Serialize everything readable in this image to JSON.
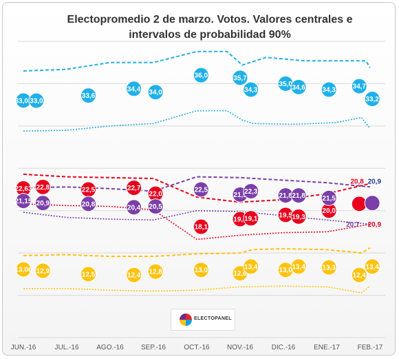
{
  "title": "Electopromedio 2 de marzo. Votos. Valores centrales e intervalos de probabilidad 90%",
  "logo_text": "ELECTOPANEL",
  "colors": {
    "pp": "#1fb0ea",
    "psoe": "#e8001c",
    "podemos": "#7a3fa8",
    "cs": "#ffc20e",
    "grid": "#d9d9d9"
  },
  "chart_data": {
    "type": "scatter",
    "ylim": [
      5,
      40
    ],
    "grid": true,
    "x_ticks": [
      "JUN.-16",
      "JUL.-16",
      "AGO.-16",
      "SEP.-16",
      "OCT.-16",
      "NOV.-16",
      "DIC.-16",
      "ENE.-17",
      "FEB.-17"
    ],
    "series": [
      {
        "key": "pp",
        "points": [
          {
            "x": 0,
            "y": 33.01,
            "label": "33,01"
          },
          {
            "x": 0.3,
            "y": 33.0,
            "label": "33,0"
          },
          {
            "x": 1.5,
            "y": 33.6,
            "label": "33,6"
          },
          {
            "x": 2.55,
            "y": 34.4,
            "label": "34,4"
          },
          {
            "x": 3.05,
            "y": 34.0,
            "label": "34,0"
          },
          {
            "x": 4.1,
            "y": 36.0,
            "label": "36,0"
          },
          {
            "x": 5.0,
            "y": 35.7,
            "label": "35,7"
          },
          {
            "x": 5.25,
            "y": 34.3,
            "label": "34,3"
          },
          {
            "x": 6.05,
            "y": 35.0,
            "label": "35,0"
          },
          {
            "x": 6.35,
            "y": 34.6,
            "label": "34,6"
          },
          {
            "x": 7.05,
            "y": 34.3,
            "label": "34,3"
          },
          {
            "x": 7.75,
            "y": 34.7,
            "label": "34,7"
          },
          {
            "x": 8.05,
            "y": 33.2,
            "label": "33,2"
          }
        ],
        "upper": [
          [
            0,
            36.5
          ],
          [
            1,
            36.7
          ],
          [
            2,
            37.5
          ],
          [
            3,
            37.5
          ],
          [
            4,
            38.8
          ],
          [
            4.7,
            38.8
          ],
          [
            5.05,
            37.2
          ],
          [
            5.6,
            38.1
          ],
          [
            6.5,
            37.7
          ],
          [
            7.5,
            37.7
          ],
          [
            7.9,
            37.7
          ],
          [
            8.0,
            36.9
          ]
        ],
        "lower": [
          [
            0,
            29.4
          ],
          [
            1,
            29.5
          ],
          [
            2,
            30.0
          ],
          [
            3,
            30.3
          ],
          [
            4,
            31.8
          ],
          [
            4.7,
            31.8
          ],
          [
            5.05,
            30.7
          ],
          [
            5.3,
            30.3
          ],
          [
            6.2,
            30.2
          ],
          [
            7.2,
            30.4
          ],
          [
            7.8,
            31.0
          ],
          [
            8.0,
            29.7
          ]
        ]
      },
      {
        "key": "psoe",
        "points": [
          {
            "x": 0,
            "y": 22.63,
            "label": "22,63"
          },
          {
            "x": 0.45,
            "y": 22.8,
            "label": "22,8"
          },
          {
            "x": 1.5,
            "y": 22.5,
            "label": "22,5"
          },
          {
            "x": 2.55,
            "y": 22.7,
            "label": "22,7"
          },
          {
            "x": 3.05,
            "y": 22.0,
            "label": "22,0"
          },
          {
            "x": 4.1,
            "y": 18.1,
            "label": "18,1"
          },
          {
            "x": 5.0,
            "y": 19.0,
            "label": "19,0"
          },
          {
            "x": 5.25,
            "y": 19.1,
            "label": "19,1"
          },
          {
            "x": 6.05,
            "y": 19.5,
            "label": "19,5"
          },
          {
            "x": 6.35,
            "y": 19.3,
            "label": "19,3"
          },
          {
            "x": 7.05,
            "y": 20.0,
            "label": "20,0"
          },
          {
            "x": 7.75,
            "y": 20.8,
            "label": ""
          }
        ],
        "upper": [
          [
            0,
            24.3
          ],
          [
            1,
            24.0
          ],
          [
            2,
            23.9
          ],
          [
            3,
            23.8
          ],
          [
            4,
            21.6
          ],
          [
            5,
            21.0
          ],
          [
            6,
            21.3
          ],
          [
            7,
            22.0
          ],
          [
            8.0,
            23.2
          ]
        ],
        "lower": [
          [
            0,
            20.8
          ],
          [
            1,
            20.6
          ],
          [
            2,
            20.5
          ],
          [
            3,
            20.1
          ],
          [
            4,
            16.6
          ],
          [
            5,
            17.1
          ],
          [
            6,
            17.4
          ],
          [
            7,
            17.5
          ],
          [
            8.0,
            18.4
          ]
        ]
      },
      {
        "key": "podemos",
        "points": [
          {
            "x": 0,
            "y": 21.15,
            "label": "21,15"
          },
          {
            "x": 0.45,
            "y": 20.9,
            "label": "20,9"
          },
          {
            "x": 1.5,
            "y": 20.8,
            "label": "20,8"
          },
          {
            "x": 2.55,
            "y": 20.4,
            "label": "20,4"
          },
          {
            "x": 3.05,
            "y": 20.5,
            "label": "20,5"
          },
          {
            "x": 4.1,
            "y": 22.5,
            "label": "22,5"
          },
          {
            "x": 5.0,
            "y": 21.9,
            "label": "21,9"
          },
          {
            "x": 5.25,
            "y": 22.3,
            "label": "22,3"
          },
          {
            "x": 6.05,
            "y": 21.8,
            "label": "21,8"
          },
          {
            "x": 6.35,
            "y": 21.8,
            "label": "21,8"
          },
          {
            "x": 7.05,
            "y": 21.5,
            "label": "21,5"
          },
          {
            "x": 8.05,
            "y": 20.9,
            "label": ""
          }
        ],
        "upper": [
          [
            0,
            22.7
          ],
          [
            1,
            22.8
          ],
          [
            2,
            22.6
          ],
          [
            3,
            22.3
          ],
          [
            4,
            24.0
          ],
          [
            5,
            23.9
          ],
          [
            6,
            23.6
          ],
          [
            7,
            23.3
          ],
          [
            8.0,
            22.8
          ]
        ],
        "lower": [
          [
            0,
            19.8
          ],
          [
            1,
            19.2
          ],
          [
            2,
            19.0
          ],
          [
            3,
            18.9
          ],
          [
            4,
            20.0
          ],
          [
            5,
            19.9
          ],
          [
            6,
            19.4
          ],
          [
            7,
            18.9
          ],
          [
            8.0,
            18.4
          ]
        ]
      },
      {
        "key": "cs",
        "points": [
          {
            "x": 0,
            "y": 13.06,
            "label": "13,06"
          },
          {
            "x": 0.45,
            "y": 12.9,
            "label": "12,9"
          },
          {
            "x": 1.5,
            "y": 12.5,
            "label": "12,5"
          },
          {
            "x": 2.55,
            "y": 12.4,
            "label": "12,4"
          },
          {
            "x": 3.05,
            "y": 12.8,
            "label": "12,8"
          },
          {
            "x": 4.1,
            "y": 13.0,
            "label": "13,0"
          },
          {
            "x": 5.0,
            "y": 12.6,
            "label": "12,6"
          },
          {
            "x": 5.25,
            "y": 13.4,
            "label": "13,4"
          },
          {
            "x": 6.05,
            "y": 13.0,
            "label": "13,0"
          },
          {
            "x": 6.35,
            "y": 13.4,
            "label": "13,4"
          },
          {
            "x": 7.05,
            "y": 13.3,
            "label": "13,3"
          },
          {
            "x": 7.75,
            "y": 12.4,
            "label": "12,4"
          },
          {
            "x": 8.05,
            "y": 13.4,
            "label": "13,4"
          }
        ],
        "upper": [
          [
            0,
            14.7
          ],
          [
            1,
            14.8
          ],
          [
            2,
            14.6
          ],
          [
            3,
            14.6
          ],
          [
            4,
            14.9
          ],
          [
            5,
            15.0
          ],
          [
            5.3,
            15.4
          ],
          [
            6,
            15.5
          ],
          [
            7,
            15.4
          ],
          [
            7.8,
            15.0
          ],
          [
            8.0,
            15.6
          ]
        ],
        "lower": [
          [
            0,
            10.8
          ],
          [
            1,
            10.8
          ],
          [
            2,
            10.6
          ],
          [
            3,
            10.5
          ],
          [
            4,
            10.6
          ],
          [
            5,
            11.0
          ],
          [
            6,
            11.1
          ],
          [
            7,
            11.0
          ],
          [
            7.8,
            10.3
          ],
          [
            8.0,
            11.1
          ]
        ]
      }
    ],
    "annotations": [
      {
        "x": 7.7,
        "y": 23.2,
        "text": "20,8",
        "color": "#e8001c"
      },
      {
        "x": 8.1,
        "y": 23.2,
        "text": "20,9",
        "color": "#1f3a93"
      },
      {
        "x": 7.6,
        "y": 18.1,
        "text": "20,7",
        "color": "#7a3fa8"
      },
      {
        "x": 8.1,
        "y": 18.1,
        "text": "20,9",
        "color": "#e8001c"
      }
    ]
  }
}
